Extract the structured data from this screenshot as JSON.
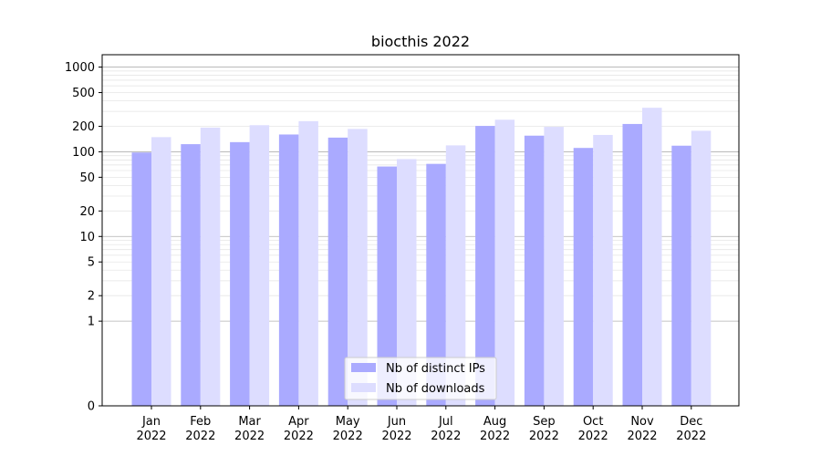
{
  "chart_data": {
    "type": "bar",
    "title": "biocthis 2022",
    "xlabel": "",
    "ylabel": "",
    "categories": [
      "Jan\n2022",
      "Feb\n2022",
      "Mar\n2022",
      "Apr\n2022",
      "May\n2022",
      "Jun\n2022",
      "Jul\n2022",
      "Aug\n2022",
      "Sep\n2022",
      "Oct\n2022",
      "Nov\n2022",
      "Dec\n2022"
    ],
    "series": [
      {
        "name": "Nb of distinct IPs",
        "color": "#aaaaff",
        "values": [
          98,
          123,
          130,
          160,
          147,
          67,
          72,
          202,
          155,
          111,
          213,
          118
        ]
      },
      {
        "name": "Nb of downloads",
        "color": "#ddddff",
        "values": [
          149,
          193,
          206,
          230,
          186,
          82,
          119,
          239,
          197,
          158,
          331,
          177
        ]
      }
    ],
    "y_scale": "symlog",
    "ylim": [
      0,
      1400
    ],
    "y_ticks": [
      0,
      1,
      2,
      5,
      10,
      20,
      50,
      100,
      200,
      500,
      1000
    ],
    "grid": true,
    "legend_position": "lower-center"
  }
}
